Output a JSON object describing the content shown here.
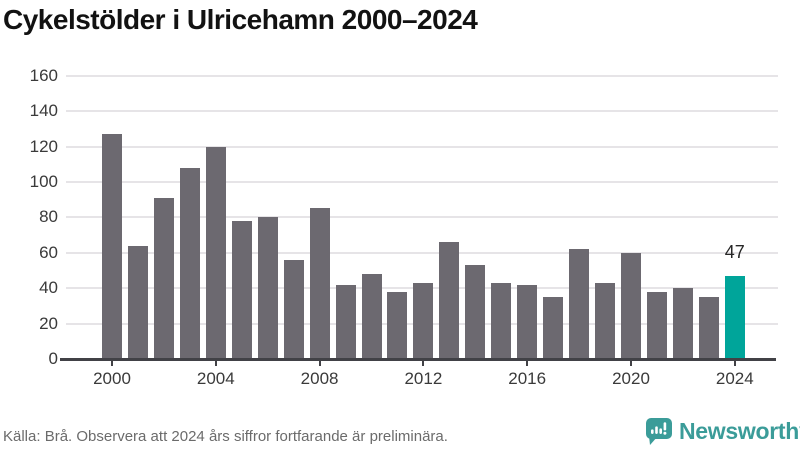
{
  "title": "Cykelstölder i Ulricehamn 2000–2024",
  "footer": {
    "source_note": "Källa: Brå. Observera att 2024 års siffror fortfarande är preliminära."
  },
  "branding": {
    "logo_text": "Newsworthy",
    "logo_icon": "newsworthy-bubble-chart-icon"
  },
  "colors": {
    "bar": "#6c6970",
    "highlight": "#00a59a",
    "grid": "#e6e4e7",
    "axis": "#414146",
    "title_text": "#121212",
    "tick_text": "#3a3a3a",
    "footer_text": "#6b6b6b",
    "brand_teal": "#3b9c99",
    "annotation_text": "#272727"
  },
  "chart_data": {
    "type": "bar",
    "title": "Cykelstölder i Ulricehamn 2000–2024",
    "xlabel": "",
    "ylabel": "",
    "categories": [
      2000,
      2001,
      2002,
      2003,
      2004,
      2005,
      2006,
      2007,
      2008,
      2009,
      2010,
      2011,
      2012,
      2013,
      2014,
      2015,
      2016,
      2017,
      2018,
      2019,
      2020,
      2021,
      2022,
      2023,
      2024
    ],
    "values": [
      127,
      64,
      91,
      108,
      120,
      78,
      80,
      56,
      85,
      42,
      48,
      38,
      43,
      66,
      53,
      43,
      42,
      35,
      62,
      43,
      60,
      38,
      40,
      35,
      47
    ],
    "highlight_index": 24,
    "annotation": {
      "index": 24,
      "label": "47"
    },
    "ylim": [
      0,
      160
    ],
    "y_ticks": [
      0,
      20,
      40,
      60,
      80,
      100,
      120,
      140,
      160
    ],
    "x_tick_labels": [
      "2000",
      "2004",
      "2008",
      "2012",
      "2016",
      "2020",
      "2024"
    ],
    "grid": "horizontal",
    "legend": "none"
  }
}
